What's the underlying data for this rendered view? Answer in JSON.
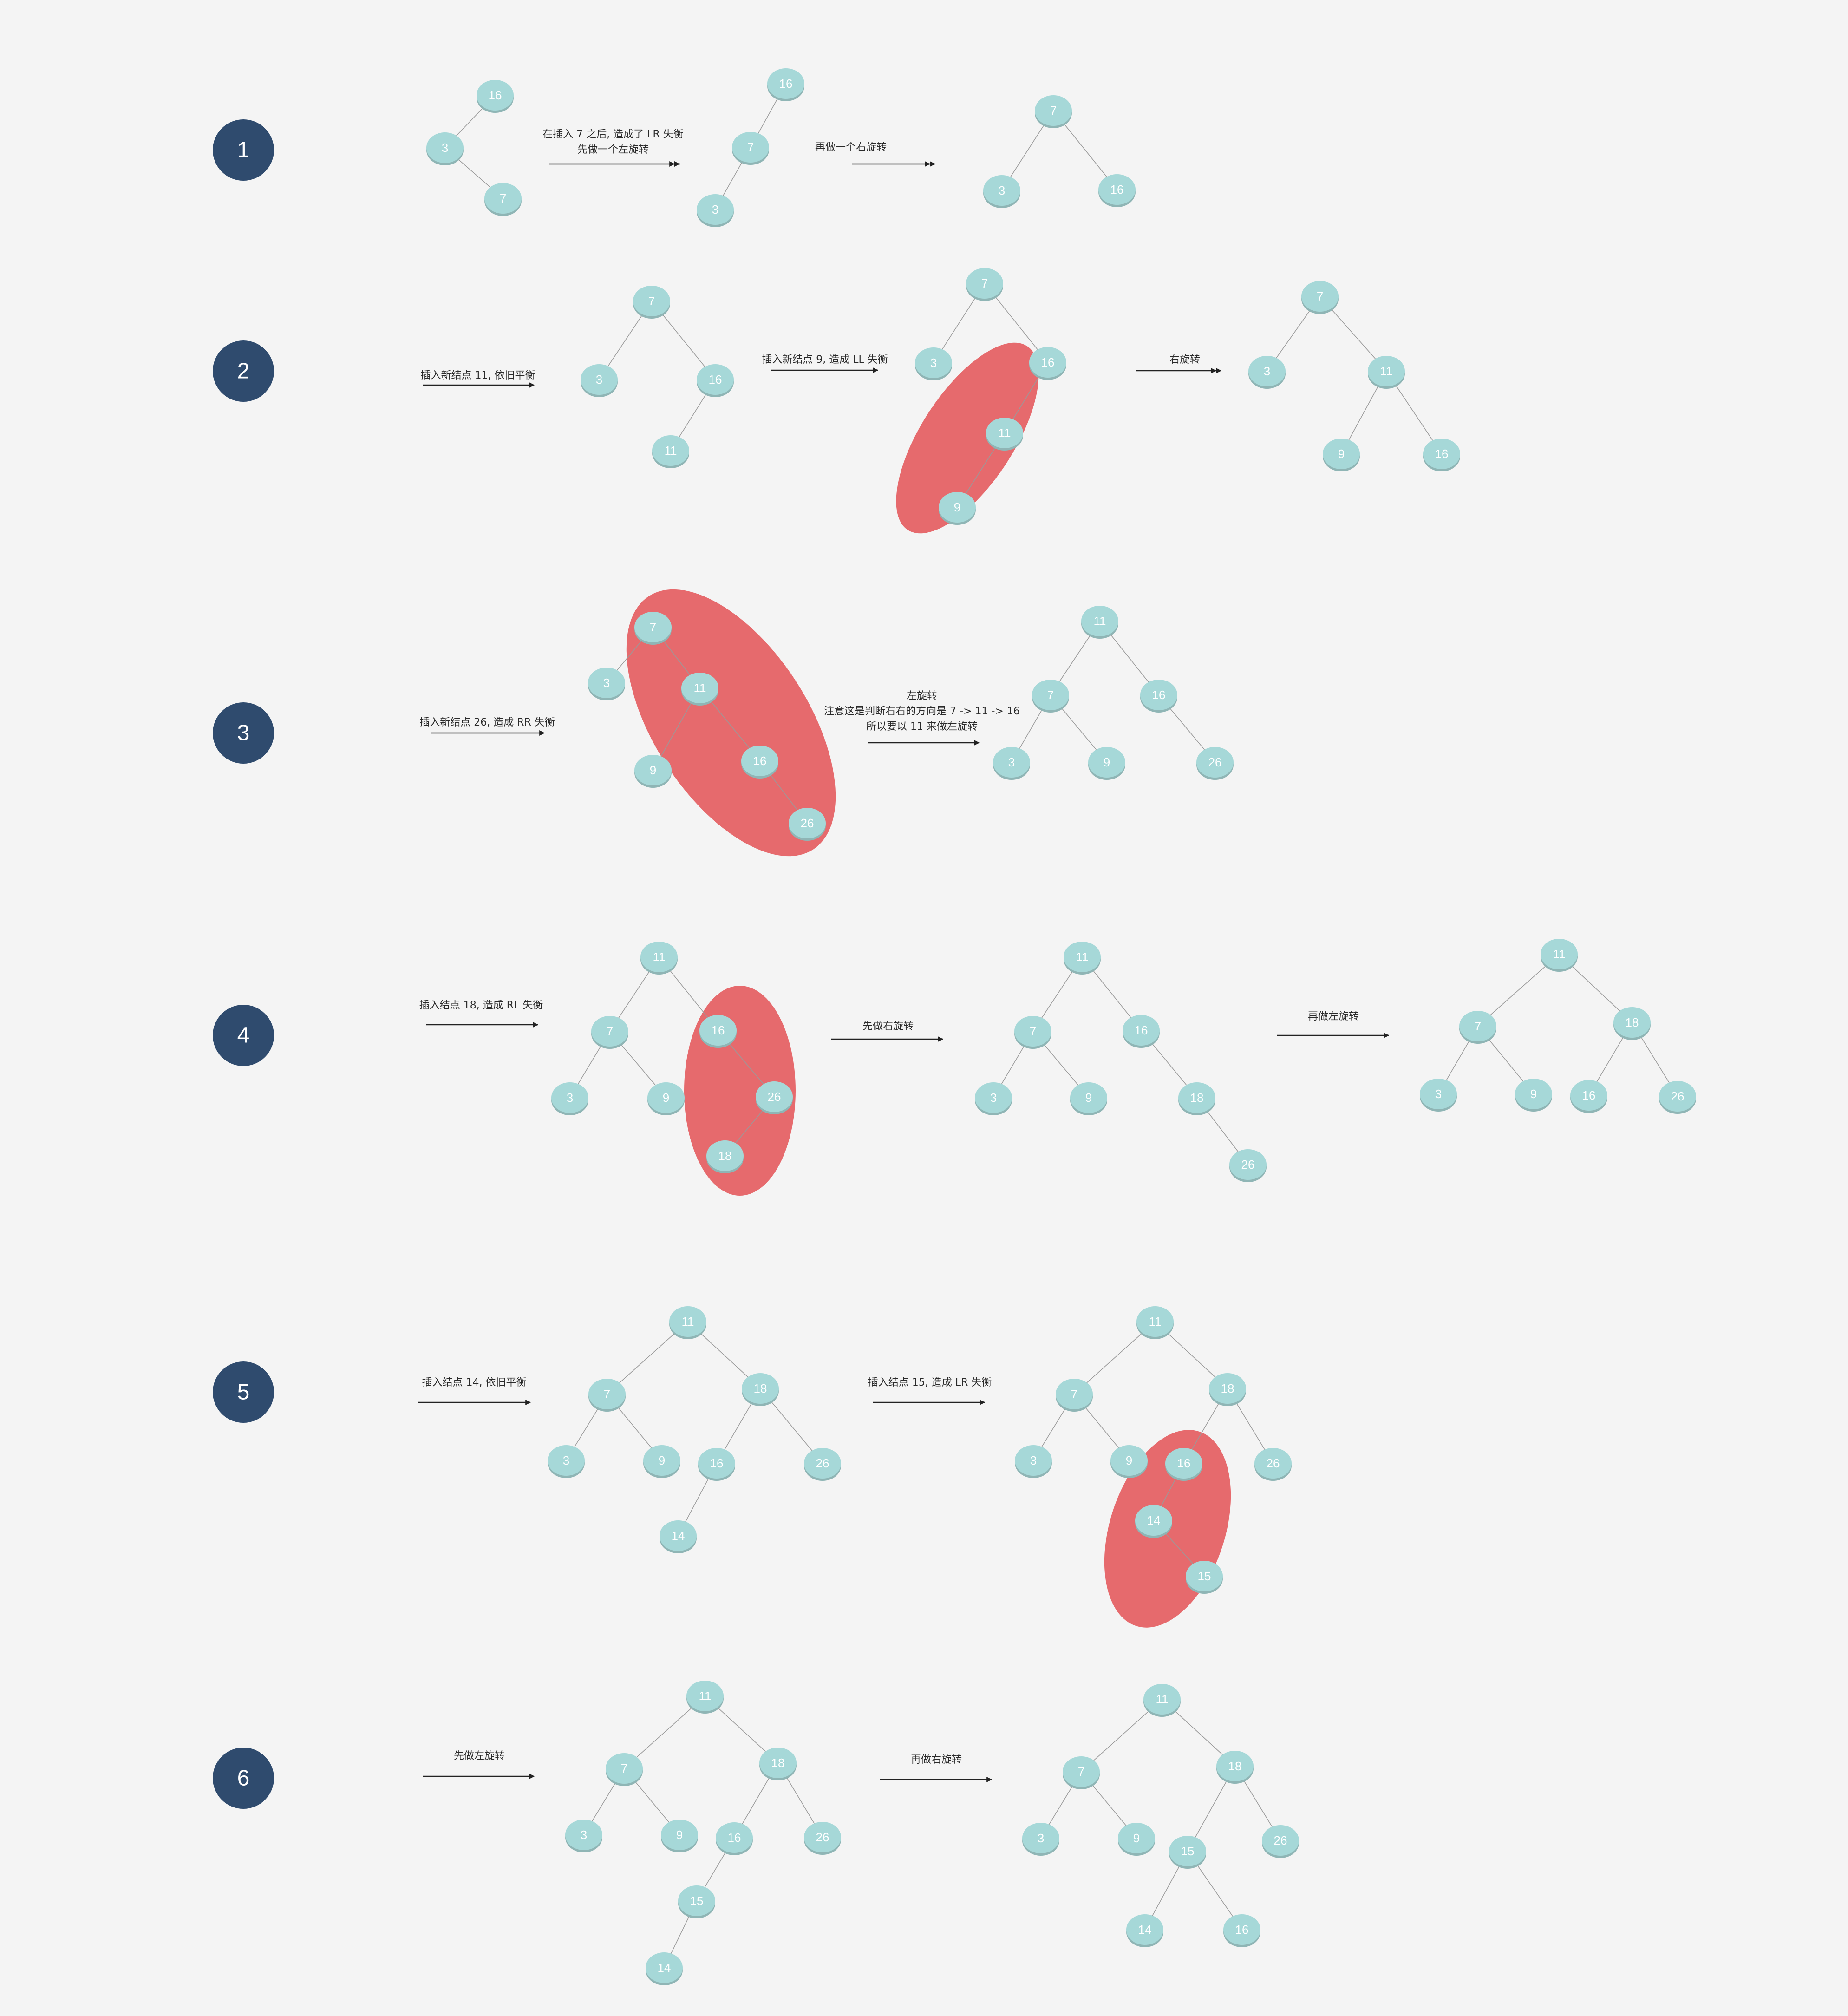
{
  "steps": [
    "1",
    "2",
    "3",
    "4",
    "5",
    "6"
  ],
  "labels": {
    "s1a": [
      "在插入 7 之后, 造成了 LR 失衡",
      "先做一个左旋转"
    ],
    "s1b": [
      "再做一个右旋转"
    ],
    "s2a": [
      "插入新结点 11,  依旧平衡"
    ],
    "s2b": [
      "插入新结点  9,   造成 LL 失衡"
    ],
    "s2c": [
      "右旋转"
    ],
    "s3a": [
      "插入新结点 26,  造成 RR 失衡"
    ],
    "s3b": [
      "左旋转",
      "注意这是判断右右的方向是 7 -> 11 -> 16",
      "所以要以 11 来做左旋转"
    ],
    "s4a": [
      "插入结点 18,  造成 RL 失衡"
    ],
    "s4b": [
      "先做右旋转"
    ],
    "s4c": [
      "再做左旋转"
    ],
    "s5a": [
      "插入结点 14,  依旧平衡"
    ],
    "s5b": [
      "插入结点 15, 造成 LR 失衡"
    ],
    "s6a": [
      "先做左旋转"
    ],
    "s6b": [
      "再做右旋转"
    ]
  },
  "trees": {
    "s1_t1": {
      "nodes": [
        "16",
        "3",
        "7"
      ],
      "edges": [
        [
          0,
          1
        ],
        [
          1,
          2
        ]
      ]
    },
    "s1_t2": {
      "nodes": [
        "16",
        "7",
        "3"
      ],
      "edges": [
        [
          0,
          1
        ],
        [
          1,
          2
        ]
      ]
    },
    "s1_t3": {
      "nodes": [
        "7",
        "3",
        "16"
      ],
      "edges": [
        [
          0,
          1
        ],
        [
          0,
          2
        ]
      ]
    },
    "s2_t1": {
      "nodes": [
        "7",
        "3",
        "16",
        "11"
      ],
      "edges": [
        [
          0,
          1
        ],
        [
          0,
          2
        ],
        [
          2,
          3
        ]
      ]
    },
    "s2_t2": {
      "nodes": [
        "7",
        "3",
        "16",
        "11",
        "9"
      ],
      "edges": [
        [
          0,
          1
        ],
        [
          0,
          2
        ],
        [
          2,
          3
        ],
        [
          3,
          4
        ]
      ]
    },
    "s2_t3": {
      "nodes": [
        "7",
        "3",
        "11",
        "9",
        "16"
      ],
      "edges": [
        [
          0,
          1
        ],
        [
          0,
          2
        ],
        [
          2,
          3
        ],
        [
          2,
          4
        ]
      ]
    },
    "s3_t1": {
      "nodes": [
        "7",
        "3",
        "11",
        "9",
        "16",
        "26"
      ],
      "edges": [
        [
          0,
          1
        ],
        [
          0,
          2
        ],
        [
          2,
          3
        ],
        [
          2,
          4
        ],
        [
          4,
          5
        ]
      ]
    },
    "s3_t2": {
      "nodes": [
        "11",
        "7",
        "16",
        "3",
        "9",
        "26"
      ],
      "edges": [
        [
          0,
          1
        ],
        [
          0,
          2
        ],
        [
          1,
          3
        ],
        [
          1,
          4
        ],
        [
          2,
          5
        ]
      ]
    },
    "s4_t1": {
      "nodes": [
        "11",
        "7",
        "16",
        "3",
        "9",
        "26",
        "18"
      ],
      "edges": [
        [
          0,
          1
        ],
        [
          0,
          2
        ],
        [
          1,
          3
        ],
        [
          1,
          4
        ],
        [
          2,
          5
        ],
        [
          5,
          6
        ]
      ]
    },
    "s4_t2": {
      "nodes": [
        "11",
        "7",
        "16",
        "3",
        "9",
        "18",
        "26"
      ],
      "edges": [
        [
          0,
          1
        ],
        [
          0,
          2
        ],
        [
          1,
          3
        ],
        [
          1,
          4
        ],
        [
          2,
          5
        ],
        [
          5,
          6
        ]
      ]
    },
    "s4_t3": {
      "nodes": [
        "11",
        "7",
        "18",
        "3",
        "9",
        "16",
        "26"
      ],
      "edges": [
        [
          0,
          1
        ],
        [
          0,
          2
        ],
        [
          1,
          3
        ],
        [
          1,
          4
        ],
        [
          2,
          5
        ],
        [
          2,
          6
        ]
      ]
    },
    "s5_t1": {
      "nodes": [
        "11",
        "7",
        "18",
        "3",
        "9",
        "16",
        "26",
        "14"
      ],
      "edges": [
        [
          0,
          1
        ],
        [
          0,
          2
        ],
        [
          1,
          3
        ],
        [
          1,
          4
        ],
        [
          2,
          5
        ],
        [
          2,
          6
        ],
        [
          5,
          7
        ]
      ]
    },
    "s5_t2": {
      "nodes": [
        "11",
        "7",
        "18",
        "3",
        "9",
        "16",
        "26",
        "14",
        "15"
      ],
      "edges": [
        [
          0,
          1
        ],
        [
          0,
          2
        ],
        [
          1,
          3
        ],
        [
          1,
          4
        ],
        [
          2,
          5
        ],
        [
          2,
          6
        ],
        [
          5,
          7
        ],
        [
          7,
          8
        ]
      ]
    },
    "s6_t1": {
      "nodes": [
        "11",
        "7",
        "18",
        "3",
        "9",
        "16",
        "26",
        "15",
        "14"
      ],
      "edges": [
        [
          0,
          1
        ],
        [
          0,
          2
        ],
        [
          1,
          3
        ],
        [
          1,
          4
        ],
        [
          2,
          5
        ],
        [
          2,
          6
        ],
        [
          5,
          7
        ],
        [
          7,
          8
        ]
      ]
    },
    "s6_t2": {
      "nodes": [
        "11",
        "7",
        "18",
        "3",
        "9",
        "15",
        "26",
        "14",
        "16"
      ],
      "edges": [
        [
          0,
          1
        ],
        [
          0,
          2
        ],
        [
          1,
          3
        ],
        [
          1,
          4
        ],
        [
          2,
          5
        ],
        [
          2,
          6
        ],
        [
          5,
          7
        ],
        [
          5,
          8
        ]
      ]
    }
  },
  "colors": {
    "node": "#a6d8d8",
    "highlight": "#e45f62",
    "step": "#2f4b6e"
  }
}
